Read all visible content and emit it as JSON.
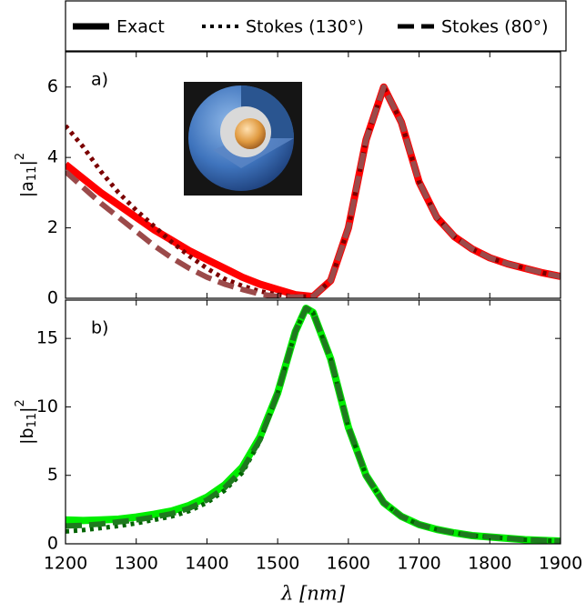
{
  "chart_data": [
    {
      "type": "line",
      "annotation": "a)",
      "y_label": {
        "base": "|a",
        "sub": "11",
        "close": "|",
        "sup": "2"
      },
      "x": [
        1200,
        1225,
        1250,
        1275,
        1300,
        1325,
        1350,
        1375,
        1400,
        1425,
        1450,
        1475,
        1500,
        1525,
        1550,
        1575,
        1600,
        1625,
        1650,
        1675,
        1700,
        1725,
        1750,
        1775,
        1800,
        1825,
        1850,
        1875,
        1900
      ],
      "series": [
        {
          "name": "Exact",
          "color": "#ff0000",
          "style": "solid",
          "values": [
            3.8,
            3.4,
            3.0,
            2.65,
            2.3,
            1.95,
            1.65,
            1.35,
            1.1,
            0.85,
            0.6,
            0.4,
            0.25,
            0.1,
            0.05,
            0.5,
            2.0,
            4.5,
            6.0,
            5.0,
            3.3,
            2.3,
            1.75,
            1.4,
            1.15,
            0.98,
            0.85,
            0.72,
            0.62
          ]
        },
        {
          "name": "Stokes (130°)",
          "color": "#7b0000",
          "style": "dotted",
          "values": [
            4.9,
            4.3,
            3.6,
            3.0,
            2.5,
            2.05,
            1.6,
            1.2,
            0.85,
            0.55,
            0.35,
            0.2,
            0.1,
            0.05,
            0.05,
            0.5,
            2.0,
            4.5,
            6.0,
            5.0,
            3.3,
            2.3,
            1.75,
            1.4,
            1.15,
            0.98,
            0.85,
            0.72,
            0.62
          ]
        },
        {
          "name": "Stokes (80°)",
          "color": "#9b4a4a",
          "style": "dashed",
          "values": [
            3.6,
            3.15,
            2.7,
            2.3,
            1.9,
            1.5,
            1.15,
            0.85,
            0.6,
            0.4,
            0.25,
            0.12,
            0.05,
            0.03,
            0.05,
            0.5,
            2.0,
            4.5,
            6.0,
            5.0,
            3.3,
            2.3,
            1.75,
            1.4,
            1.15,
            0.98,
            0.85,
            0.72,
            0.62
          ]
        }
      ],
      "xlim": [
        1200,
        1900
      ],
      "xticks": [
        1200,
        1300,
        1400,
        1500,
        1600,
        1700,
        1800,
        1900
      ],
      "ylim": [
        0,
        7
      ],
      "yticks": [
        0,
        2,
        4,
        6
      ]
    },
    {
      "type": "line",
      "annotation": "b)",
      "x_label": "λ [nm]",
      "y_label": {
        "base": "|b",
        "sub": "11",
        "close": "|",
        "sup": "2"
      },
      "x": [
        1200,
        1225,
        1250,
        1275,
        1300,
        1325,
        1350,
        1375,
        1400,
        1425,
        1450,
        1475,
        1500,
        1525,
        1540,
        1550,
        1575,
        1600,
        1625,
        1650,
        1675,
        1700,
        1725,
        1750,
        1775,
        1800,
        1825,
        1850,
        1875,
        1900
      ],
      "series": [
        {
          "name": "Exact",
          "color": "#00ee00",
          "style": "solid",
          "values": [
            1.75,
            1.7,
            1.75,
            1.8,
            1.95,
            2.15,
            2.4,
            2.8,
            3.4,
            4.3,
            5.6,
            7.8,
            11,
            15.5,
            17.2,
            16.9,
            13.5,
            8.5,
            5.0,
            3.0,
            2.0,
            1.4,
            1.05,
            0.8,
            0.6,
            0.5,
            0.4,
            0.3,
            0.25,
            0.2
          ]
        },
        {
          "name": "Stokes (130°)",
          "color": "#006400",
          "style": "dotted",
          "values": [
            0.9,
            1.0,
            1.15,
            1.3,
            1.5,
            1.75,
            2.0,
            2.4,
            3.0,
            3.9,
            5.2,
            7.5,
            11,
            15.5,
            17.2,
            16.9,
            13.5,
            8.5,
            5.0,
            3.0,
            2.0,
            1.4,
            1.05,
            0.8,
            0.6,
            0.5,
            0.4,
            0.3,
            0.25,
            0.2
          ]
        },
        {
          "name": "Stokes (80°)",
          "color": "#1e7a1e",
          "style": "dashed",
          "values": [
            1.3,
            1.35,
            1.45,
            1.6,
            1.75,
            1.95,
            2.2,
            2.6,
            3.2,
            4.1,
            5.4,
            7.6,
            11,
            15.5,
            17.2,
            16.9,
            13.5,
            8.5,
            5.0,
            3.0,
            2.0,
            1.4,
            1.05,
            0.8,
            0.6,
            0.5,
            0.4,
            0.3,
            0.25,
            0.2
          ]
        }
      ],
      "xlim": [
        1200,
        1900
      ],
      "xticks": [
        1200,
        1300,
        1400,
        1500,
        1600,
        1700,
        1800,
        1900
      ],
      "ylim": [
        0,
        17.8
      ],
      "yticks": [
        0,
        5,
        10,
        15
      ]
    }
  ]
}
